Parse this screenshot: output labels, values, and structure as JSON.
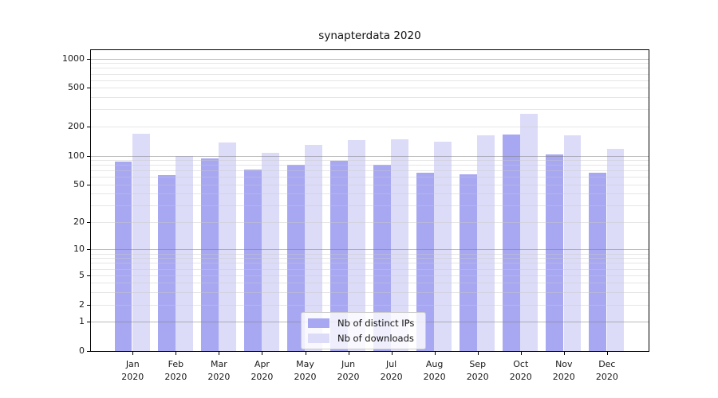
{
  "title": "synapterdata 2020",
  "chart_data": {
    "type": "bar",
    "title": "synapterdata 2020",
    "categories": [
      "Jan",
      "Feb",
      "Mar",
      "Apr",
      "May",
      "Jun",
      "Jul",
      "Aug",
      "Sep",
      "Oct",
      "Nov",
      "Dec"
    ],
    "category_year": "2020",
    "series": [
      {
        "name": "Nb of distinct IPs",
        "color": "#a8a8f2",
        "values": [
          87,
          63,
          93,
          72,
          80,
          88,
          81,
          66,
          64,
          164,
          103,
          66
        ]
      },
      {
        "name": "Nb of downloads",
        "color": "#dcdcf8",
        "values": [
          168,
          100,
          136,
          106,
          130,
          145,
          148,
          139,
          162,
          272,
          162,
          117
        ]
      }
    ],
    "xlabel": "",
    "ylabel": "",
    "y_scale": "log1p",
    "y_ticks": [
      0,
      1,
      2,
      5,
      10,
      20,
      50,
      100,
      200,
      500,
      1000
    ],
    "y_major_gridlines": [
      1,
      10,
      100,
      1000
    ],
    "y_minor_gridlines": [
      2,
      3,
      4,
      5,
      6,
      7,
      8,
      9,
      20,
      30,
      40,
      50,
      60,
      70,
      80,
      90,
      200,
      300,
      400,
      500,
      600,
      700,
      800,
      900
    ],
    "ylim": [
      0,
      1220
    ],
    "grid": "horizontal major+minor, drawn over bars",
    "legend_position": "lower center inside plot"
  },
  "colors": {
    "bar_distinct_ips": "#a8a8f2",
    "bar_downloads": "#dcdcf8",
    "grid_major": "#bababa",
    "grid_minor": "#e4e4e4",
    "axis_spine": "#000000",
    "background": "#ffffff"
  }
}
